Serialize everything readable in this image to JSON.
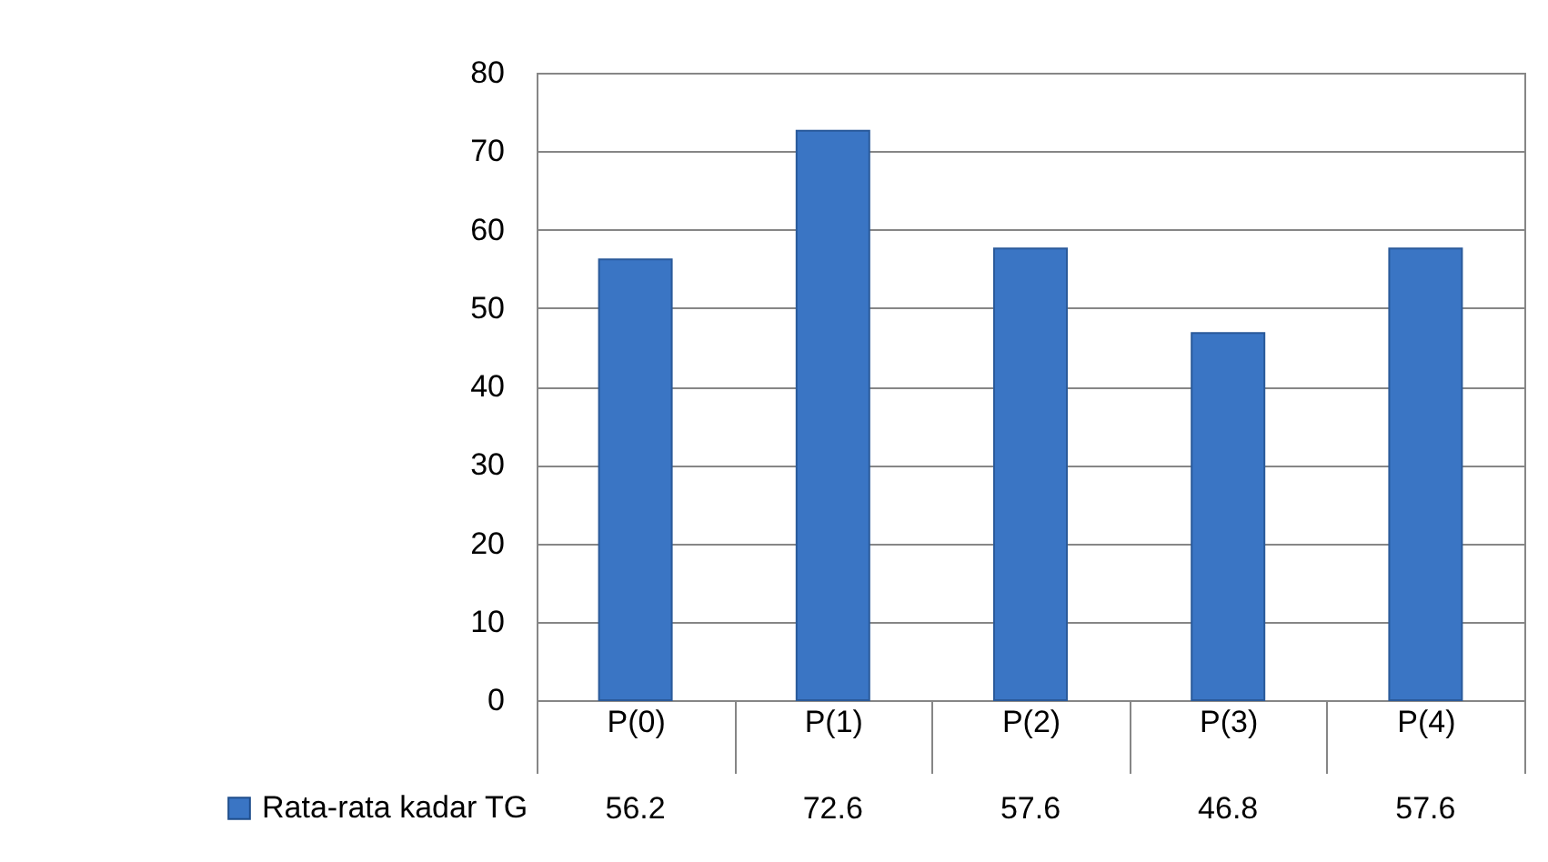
{
  "chart_data": {
    "type": "bar",
    "categories": [
      "P(0)",
      "P(1)",
      "P(2)",
      "P(3)",
      "P(4)"
    ],
    "series": [
      {
        "name": "Rata-rata kadar TG",
        "color": "#3a75c4",
        "values": [
          56.2,
          72.6,
          57.6,
          46.8,
          57.6
        ]
      }
    ],
    "ylim": [
      0,
      80
    ],
    "yticks": [
      0,
      10,
      20,
      30,
      40,
      50,
      60,
      70,
      80
    ],
    "grid": "y",
    "legend": "bottom left",
    "data_labels": true
  }
}
